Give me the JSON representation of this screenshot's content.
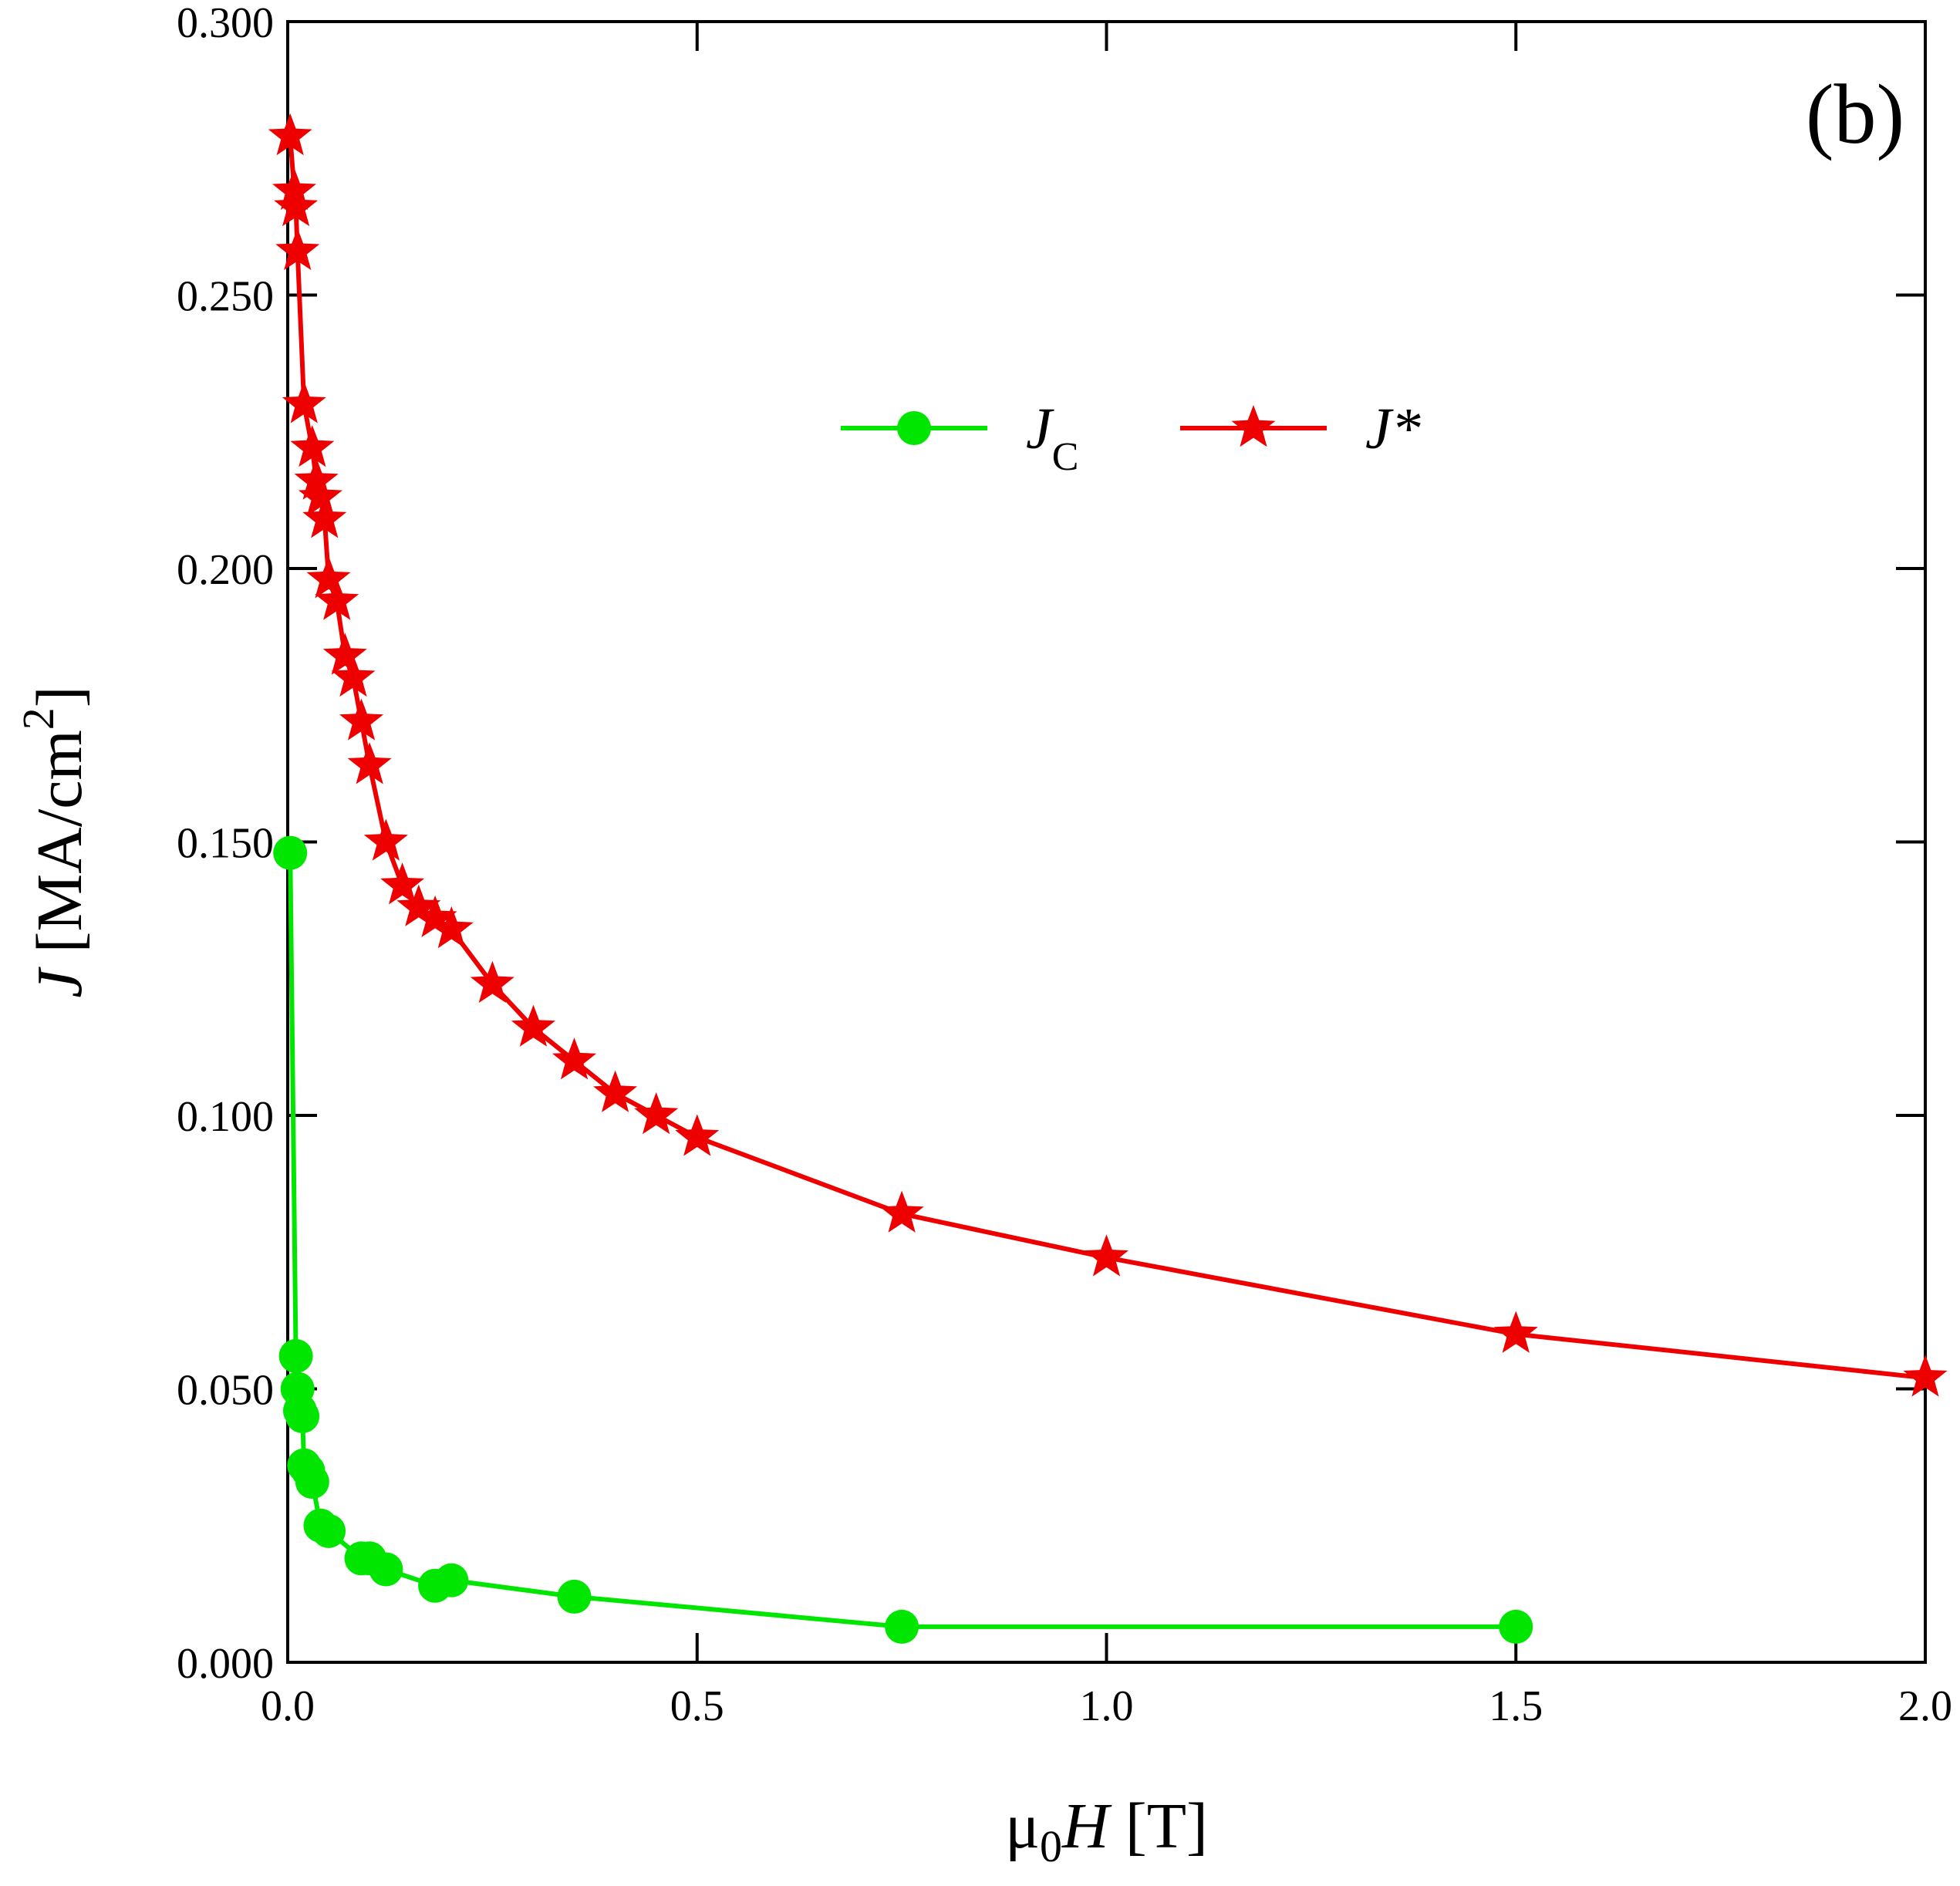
{
  "chart_data": {
    "type": "line",
    "annotation": "(b)",
    "xlabel": {
      "parts": [
        "μ",
        "0",
        "H",
        " [T]"
      ]
    },
    "ylabel": {
      "parts": [
        "J",
        " [MA/cm",
        "2",
        "]"
      ]
    },
    "xlim": [
      0,
      2
    ],
    "ylim": [
      0,
      0.3
    ],
    "xticks": [
      {
        "value": 0,
        "label": "0.0"
      },
      {
        "value": 0.5,
        "label": "0.5"
      },
      {
        "value": 1,
        "label": "1.0"
      },
      {
        "value": 1.5,
        "label": "1.5"
      },
      {
        "value": 2,
        "label": "2.0"
      }
    ],
    "yticks": [
      {
        "value": 0,
        "label": "0.000"
      },
      {
        "value": 0.05,
        "label": "0.050"
      },
      {
        "value": 0.1,
        "label": "0.100"
      },
      {
        "value": 0.15,
        "label": "0.150"
      },
      {
        "value": 0.2,
        "label": "0.200"
      },
      {
        "value": 0.25,
        "label": "0.250"
      },
      {
        "value": 0.3,
        "label": "0.300"
      }
    ],
    "series": [
      {
        "name": "J",
        "subscript": "C",
        "color": "#00e600",
        "marker": "circle",
        "x": [
          0.003,
          0.01,
          0.012,
          0.015,
          0.018,
          0.02,
          0.025,
          0.03,
          0.04,
          0.05,
          0.09,
          0.1,
          0.12,
          0.18,
          0.2,
          0.35,
          0.75,
          1.5
        ],
        "values": [
          0.148,
          0.056,
          0.05,
          0.046,
          0.045,
          0.036,
          0.035,
          0.033,
          0.025,
          0.024,
          0.019,
          0.019,
          0.017,
          0.014,
          0.015,
          0.012,
          0.0065,
          0.0065
        ]
      },
      {
        "name": "J*",
        "color": "#ee0000",
        "marker": "star",
        "x": [
          0.003,
          0.008,
          0.01,
          0.012,
          0.02,
          0.03,
          0.035,
          0.04,
          0.045,
          0.05,
          0.06,
          0.07,
          0.08,
          0.09,
          0.1,
          0.12,
          0.14,
          0.16,
          0.18,
          0.2,
          0.25,
          0.3,
          0.35,
          0.4,
          0.45,
          0.5,
          0.75,
          1.0,
          1.5,
          2.0
        ],
        "values": [
          0.279,
          0.269,
          0.266,
          0.258,
          0.23,
          0.222,
          0.216,
          0.213,
          0.209,
          0.198,
          0.194,
          0.184,
          0.18,
          0.172,
          0.164,
          0.15,
          0.142,
          0.138,
          0.136,
          0.134,
          0.124,
          0.116,
          0.11,
          0.104,
          0.1,
          0.096,
          0.082,
          0.074,
          0.06,
          0.052
        ]
      }
    ]
  }
}
